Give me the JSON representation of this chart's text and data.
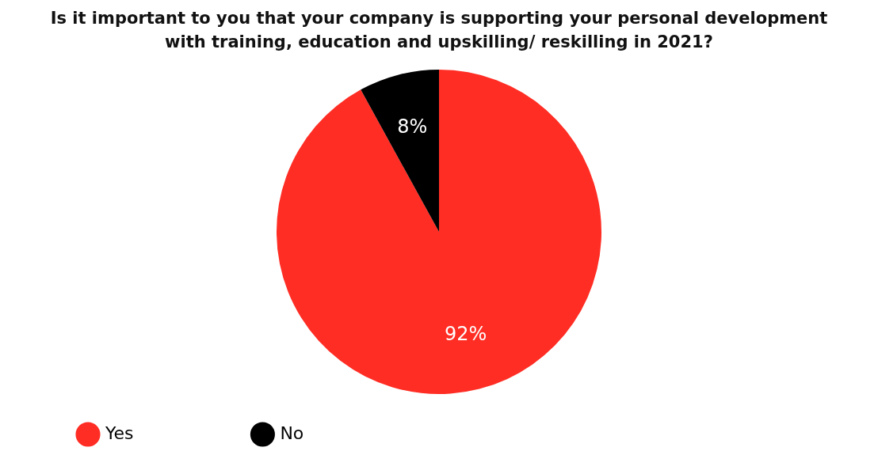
{
  "chart_data": {
    "type": "pie",
    "title": "Is it important to you that your company is supporting your personal development with training, education and upskilling/ reskilling in 2021?",
    "categories": [
      "Yes",
      "No"
    ],
    "values": [
      92,
      8
    ],
    "value_labels": [
      "92%",
      "8%"
    ],
    "colors": [
      "#ff2d24",
      "#000000"
    ],
    "legend": "bottom left"
  }
}
